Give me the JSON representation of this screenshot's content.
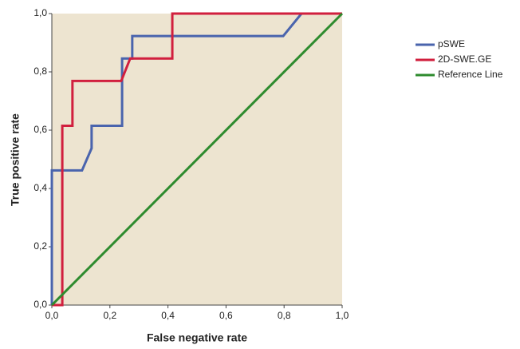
{
  "chart_data": {
    "type": "line",
    "x_label": "False negative rate",
    "y_label": "True positive rate",
    "xlim": [
      0,
      1
    ],
    "ylim": [
      0,
      1
    ],
    "xticks": [
      {
        "value": 0,
        "label": "0,0"
      },
      {
        "value": 0.2,
        "label": "0,2"
      },
      {
        "value": 0.4,
        "label": "0,4"
      },
      {
        "value": 0.6,
        "label": "0,6"
      },
      {
        "value": 0.8,
        "label": "0,8"
      },
      {
        "value": 1,
        "label": "1,0"
      }
    ],
    "yticks": [
      {
        "value": 0,
        "label": "0,0"
      },
      {
        "value": 0.2,
        "label": "0,2"
      },
      {
        "value": 0.4,
        "label": "0,4"
      },
      {
        "value": 0.6,
        "label": "0,6"
      },
      {
        "value": 0.8,
        "label": "0,8"
      },
      {
        "value": 1,
        "label": "1,0"
      }
    ],
    "background": "#ede4d0",
    "legend": "right",
    "series": [
      {
        "name": "pSWE",
        "color": "#4a64ad",
        "x": [
          0,
          0,
          0.104,
          0.137,
          0.137,
          0.242,
          0.242,
          0.277,
          0.277,
          0.797,
          0.86,
          1
        ],
        "values": [
          0,
          0.462,
          0.462,
          0.538,
          0.615,
          0.615,
          0.846,
          0.846,
          0.923,
          0.923,
          1,
          1
        ]
      },
      {
        "name": "2D-SWE.GE",
        "color": "#d11f3e",
        "x": [
          0,
          0.036,
          0.036,
          0.071,
          0.071,
          0.239,
          0.27,
          0.415,
          0.415,
          1
        ],
        "values": [
          0,
          0,
          0.615,
          0.615,
          0.769,
          0.769,
          0.846,
          0.846,
          1,
          1
        ]
      },
      {
        "name": "Reference Line",
        "color": "#2e8b2e",
        "x": [
          0,
          1
        ],
        "values": [
          0,
          1
        ]
      }
    ]
  }
}
